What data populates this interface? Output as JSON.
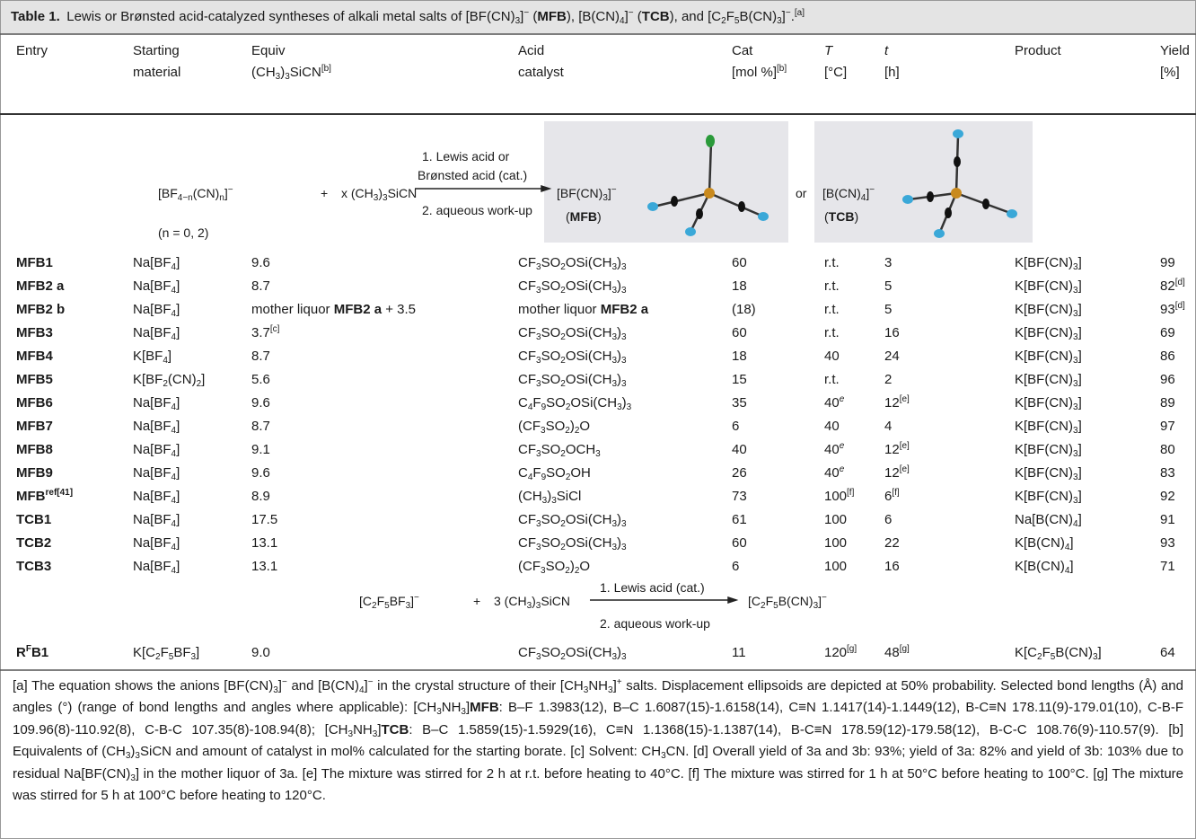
{
  "title": {
    "label": "Table 1.",
    "text": "Lewis or Brønsted acid-catalyzed syntheses of alkali metal salts of [BF(CN)3]− (MFB), [B(CN)4]− (TCB), and [C2F5B(CN)3]−.",
    "note": "[a]"
  },
  "header": [
    [
      "Entry"
    ],
    [
      "Starting",
      "material"
    ],
    [
      "Equiv",
      {
        "text": "(CH3)3SiCN",
        "note": "[b]"
      }
    ],
    [
      "Acid",
      "catalyst"
    ],
    [
      "Cat",
      {
        "text": "[mol %]",
        "note": "[b]"
      }
    ],
    [
      "T",
      "[°C]"
    ],
    [
      "t",
      "[h]"
    ],
    [
      "Product"
    ],
    [
      "Yield",
      "[%]"
    ]
  ],
  "scheme1": {
    "reactant": "[BF4−n(CN)n]−",
    "plus": "+",
    "reagent": "x (CH3)3SiCN",
    "condition": "(n = 0, 2)",
    "step1a": "1. Lewis acid or",
    "step1b": "Brønsted acid (cat.)",
    "step2": "2. aqueous work-up",
    "product1": "[BF(CN)3]−",
    "product1_label": "(MFB)",
    "or": "or",
    "product2": "[B(CN)4]−",
    "product2_label": "(TCB)"
  },
  "rows": [
    [
      "MFB1",
      "Na[BF4]",
      "9.6",
      "CF3SO2OSi(CH3)3",
      "60",
      "r.t.",
      "3",
      "K[BF(CN)3]",
      "99"
    ],
    [
      "MFB2 a",
      "Na[BF4]",
      "8.7",
      "CF3SO2OSi(CH3)3",
      "18",
      "r.t.",
      "5",
      "K[BF(CN)3]",
      {
        "text": "82",
        "note": "[d]"
      }
    ],
    [
      "MFB2 b",
      "Na[BF4]",
      "mother liquor MFB2 a + 3.5",
      "mother liquor MFB2 a",
      "(18)",
      "r.t.",
      "5",
      "K[BF(CN)3]",
      {
        "text": "93",
        "note": "[d]"
      }
    ],
    [
      "MFB3",
      "Na[BF4]",
      {
        "text": "3.7",
        "note": "[c]"
      },
      "CF3SO2OSi(CH3)3",
      "60",
      "r.t.",
      "16",
      "K[BF(CN)3]",
      "69"
    ],
    [
      "MFB4",
      "K[BF4]",
      "8.7",
      "CF3SO2OSi(CH3)3",
      "18",
      "40",
      "24",
      "K[BF(CN)3]",
      "86"
    ],
    [
      "MFB5",
      "K[BF2(CN)2]",
      "5.6",
      "CF3SO2OSi(CH3)3",
      "15",
      "r.t.",
      "2",
      "K[BF(CN)3]",
      "96"
    ],
    [
      "MFB6",
      "Na[BF4]",
      "9.6",
      "C4F9SO2OSi(CH3)3",
      "35",
      {
        "text": "40",
        "note": "e"
      },
      {
        "text": "12",
        "note": "[e]"
      },
      "K[BF(CN)3]",
      "89"
    ],
    [
      "MFB7",
      "Na[BF4]",
      "8.7",
      "(CF3SO2)2O",
      "6",
      "40",
      "4",
      "K[BF(CN)3]",
      "97"
    ],
    [
      "MFB8",
      "Na[BF4]",
      "9.1",
      "CF3SO2OCH3",
      "40",
      {
        "text": "40",
        "note": "e"
      },
      {
        "text": "12",
        "note": "[e]"
      },
      "K[BF(CN)3]",
      "80"
    ],
    [
      "MFB9",
      "Na[BF4]",
      "9.6",
      "C4F9SO2OH",
      "26",
      {
        "text": "40",
        "note": "e"
      },
      {
        "text": "12",
        "note": "[e]"
      },
      "K[BF(CN)3]",
      "83"
    ],
    [
      {
        "text": "MFB",
        "note": "ref[41]"
      },
      "Na[BF4]",
      "8.9",
      "(CH3)3SiCl",
      "73",
      {
        "text": "100",
        "note": "[f]"
      },
      {
        "text": "6",
        "note": "[f]"
      },
      "K[BF(CN)3]",
      "92"
    ],
    [
      "TCB1",
      "Na[BF4]",
      "17.5",
      "CF3SO2OSi(CH3)3",
      "61",
      "100",
      "6",
      "Na[B(CN)4]",
      "91"
    ],
    [
      "TCB2",
      "Na[BF4]",
      "13.1",
      "CF3SO2OSi(CH3)3",
      "60",
      "100",
      "22",
      "K[B(CN)4]",
      "93"
    ],
    [
      "TCB3",
      "Na[BF4]",
      "13.1",
      "(CF3SO2)2O",
      "6",
      "100",
      "16",
      "K[B(CN)4]",
      "71"
    ]
  ],
  "scheme2": {
    "reactant": "[C2F5BF3]−",
    "plus": "+",
    "reagent": "3 (CH3)3SiCN",
    "step1": "1. Lewis acid (cat.)",
    "step2": "2. aqueous work-up",
    "product": "[C2F5B(CN)3]−"
  },
  "last_row": [
    {
      "text": "R",
      "note": "F",
      "after": "B1"
    },
    "K[C2F5BF3]",
    "9.0",
    "CF3SO2OSi(CH3)3",
    "11",
    {
      "text": "120",
      "note": "[g]"
    },
    {
      "text": "48",
      "note": "[g]"
    },
    "K[C2F5B(CN)3]",
    "64"
  ],
  "footnotes": [
    {
      "mark": "[a]",
      "text": "The equation shows the anions [BF(CN)3]− and [B(CN)4]− in the crystal structure of their [CH3NH3]+ salts. Displacement ellipsoids are depicted at 50% probability. Selected bond lengths (Å) and angles (°) (range of bond lengths and angles where applicable): [CH3NH3]MFB: B–F 1.3983(12), B–C 1.6087(15)-1.6158(14), C≡N 1.1417(14)-1.1449(12), B-C≡N 178.11(9)-179.01(10), C-B-F 109.96(8)-110.92(8), C-B-C 107.35(8)-108.94(8); [CH3NH3]TCB: B–C 1.5859(15)-1.5929(16), C≡N 1.1368(15)-1.1387(14), B-C≡N 178.59(12)-179.58(12), B-C-C 108.76(9)-110.57(9)."
    },
    {
      "mark": "[b]",
      "text": "Equivalents of (CH3)3SiCN and amount of catalyst in mol% calculated for the starting borate."
    },
    {
      "mark": "[c]",
      "text": "Solvent: CH3CN."
    },
    {
      "mark": "[d]",
      "text": "Overall yield of 3a and 3b: 93%; yield of 3a: 82% and yield of 3b: 103% due to residual Na[BF(CN)3] in the mother liquor of 3a."
    },
    {
      "mark": "[e]",
      "text": "The mixture was stirred for 2 h at r.t. before heating to 40°C."
    },
    {
      "mark": "[f]",
      "text": "The mixture was stirred for 1 h at 50°C before heating to 100°C."
    },
    {
      "mark": "[g]",
      "text": "The mixture was stirred for 5 h at 100°C before heating to 120°C."
    }
  ]
}
